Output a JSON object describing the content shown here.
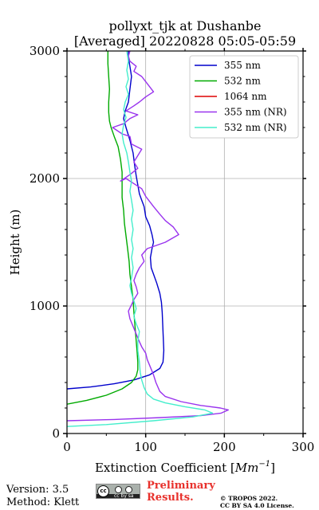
{
  "title_line1": "pollyxt_tjk at Dushanbe",
  "title_line2": "[Averaged] 20220828 05:05-05:59",
  "footer": {
    "version": "Version: 3.5",
    "method": "Method: Klett",
    "preliminary": "Preliminary Results.",
    "copyright_line1": "© TROPOS 2022.",
    "copyright_line2": "CC BY SA 4.0 License.",
    "license_badge": "cc by sa"
  },
  "chart_data": {
    "type": "line",
    "title": "pollyxt_tjk at Dushanbe [Averaged] 20220828 05:05-05:59",
    "xlabel": "Extinction Coefficient [Mm^-1]",
    "xlabel_main": "Extinction Coefficient [",
    "xlabel_unit": "Mm",
    "xlabel_exp": "−1",
    "xlabel_close": "]",
    "ylabel": "Height (m)",
    "xlim": [
      0,
      300
    ],
    "ylim": [
      0,
      3000
    ],
    "xticks": [
      0,
      100,
      200,
      300
    ],
    "yticks": [
      0,
      1000,
      2000,
      3000
    ],
    "grid": true,
    "legend_position": "top-right",
    "series": [
      {
        "name": "355 nm",
        "color": "#0000cc",
        "points": [
          [
            0,
            350
          ],
          [
            30,
            365
          ],
          [
            60,
            390
          ],
          [
            85,
            420
          ],
          [
            105,
            460
          ],
          [
            118,
            510
          ],
          [
            122,
            560
          ],
          [
            123,
            650
          ],
          [
            122,
            800
          ],
          [
            121,
            950
          ],
          [
            120,
            1030
          ],
          [
            118,
            1100
          ],
          [
            114,
            1180
          ],
          [
            110,
            1250
          ],
          [
            107,
            1300
          ],
          [
            106,
            1380
          ],
          [
            108,
            1450
          ],
          [
            110,
            1500
          ],
          [
            108,
            1560
          ],
          [
            105,
            1630
          ],
          [
            100,
            1700
          ],
          [
            98,
            1780
          ],
          [
            95,
            1830
          ],
          [
            92,
            1880
          ],
          [
            90,
            1950
          ],
          [
            88,
            2020
          ],
          [
            86,
            2100
          ],
          [
            84,
            2200
          ],
          [
            80,
            2300
          ],
          [
            75,
            2400
          ],
          [
            72,
            2470
          ],
          [
            74,
            2530
          ],
          [
            78,
            2600
          ],
          [
            80,
            2700
          ],
          [
            82,
            2800
          ],
          [
            80,
            2880
          ],
          [
            78,
            2950
          ],
          [
            78,
            3000
          ]
        ]
      },
      {
        "name": "532 nm",
        "color": "#00aa00",
        "points": [
          [
            0,
            230
          ],
          [
            25,
            260
          ],
          [
            50,
            300
          ],
          [
            70,
            350
          ],
          [
            82,
            400
          ],
          [
            88,
            450
          ],
          [
            90,
            500
          ],
          [
            90,
            560
          ],
          [
            89,
            650
          ],
          [
            87,
            800
          ],
          [
            85,
            950
          ],
          [
            84,
            1050
          ],
          [
            82,
            1150
          ],
          [
            80,
            1250
          ],
          [
            79,
            1350
          ],
          [
            77,
            1450
          ],
          [
            75,
            1550
          ],
          [
            73,
            1650
          ],
          [
            72,
            1750
          ],
          [
            70,
            1850
          ],
          [
            70,
            1950
          ],
          [
            70,
            2050
          ],
          [
            68,
            2150
          ],
          [
            65,
            2250
          ],
          [
            60,
            2330
          ],
          [
            56,
            2400
          ],
          [
            54,
            2450
          ],
          [
            53,
            2520
          ],
          [
            53,
            2600
          ],
          [
            54,
            2700
          ],
          [
            53,
            2800
          ],
          [
            52,
            2900
          ],
          [
            52,
            3000
          ]
        ]
      },
      {
        "name": "1064 nm",
        "color": "#dd0000",
        "points": []
      },
      {
        "name": "355 nm (NR)",
        "color": "#9933ee",
        "points": [
          [
            0,
            100
          ],
          [
            60,
            110
          ],
          [
            120,
            125
          ],
          [
            170,
            140
          ],
          [
            196,
            160
          ],
          [
            205,
            185
          ],
          [
            195,
            200
          ],
          [
            170,
            220
          ],
          [
            145,
            250
          ],
          [
            125,
            290
          ],
          [
            118,
            330
          ],
          [
            113,
            400
          ],
          [
            110,
            460
          ],
          [
            106,
            520
          ],
          [
            102,
            580
          ],
          [
            100,
            630
          ],
          [
            95,
            680
          ],
          [
            92,
            720
          ],
          [
            88,
            780
          ],
          [
            84,
            840
          ],
          [
            80,
            900
          ],
          [
            78,
            960
          ],
          [
            82,
            1010
          ],
          [
            85,
            1050
          ],
          [
            90,
            1100
          ],
          [
            88,
            1150
          ],
          [
            85,
            1200
          ],
          [
            88,
            1250
          ],
          [
            92,
            1300
          ],
          [
            98,
            1350
          ],
          [
            95,
            1400
          ],
          [
            102,
            1450
          ],
          [
            125,
            1500
          ],
          [
            142,
            1560
          ],
          [
            135,
            1620
          ],
          [
            125,
            1670
          ],
          [
            118,
            1720
          ],
          [
            110,
            1780
          ],
          [
            105,
            1820
          ],
          [
            100,
            1860
          ],
          [
            95,
            1920
          ],
          [
            85,
            1960
          ],
          [
            75,
            2000
          ],
          [
            68,
            1980
          ],
          [
            80,
            2030
          ],
          [
            90,
            2080
          ],
          [
            85,
            2130
          ],
          [
            90,
            2180
          ],
          [
            95,
            2230
          ],
          [
            82,
            2270
          ],
          [
            80,
            2330
          ],
          [
            70,
            2350
          ],
          [
            58,
            2400
          ],
          [
            72,
            2430
          ],
          [
            80,
            2470
          ],
          [
            90,
            2500
          ],
          [
            75,
            2530
          ],
          [
            85,
            2570
          ],
          [
            92,
            2600
          ],
          [
            100,
            2640
          ],
          [
            110,
            2680
          ],
          [
            105,
            2720
          ],
          [
            100,
            2760
          ],
          [
            95,
            2800
          ],
          [
            85,
            2840
          ],
          [
            88,
            2880
          ],
          [
            80,
            2920
          ],
          [
            78,
            2960
          ],
          [
            80,
            3000
          ]
        ]
      },
      {
        "name": "532 nm (NR)",
        "color": "#44eecc",
        "points": [
          [
            0,
            55
          ],
          [
            50,
            70
          ],
          [
            110,
            100
          ],
          [
            160,
            130
          ],
          [
            185,
            160
          ],
          [
            175,
            185
          ],
          [
            150,
            210
          ],
          [
            125,
            240
          ],
          [
            110,
            270
          ],
          [
            102,
            310
          ],
          [
            98,
            360
          ],
          [
            95,
            420
          ],
          [
            93,
            480
          ],
          [
            92,
            560
          ],
          [
            90,
            650
          ],
          [
            90,
            720
          ],
          [
            92,
            800
          ],
          [
            88,
            860
          ],
          [
            85,
            920
          ],
          [
            88,
            980
          ],
          [
            85,
            1040
          ],
          [
            82,
            1100
          ],
          [
            80,
            1160
          ],
          [
            82,
            1220
          ],
          [
            84,
            1300
          ],
          [
            82,
            1380
          ],
          [
            84,
            1450
          ],
          [
            82,
            1520
          ],
          [
            84,
            1600
          ],
          [
            82,
            1680
          ],
          [
            84,
            1750
          ],
          [
            82,
            1830
          ],
          [
            80,
            1900
          ],
          [
            82,
            1980
          ],
          [
            80,
            2050
          ],
          [
            78,
            2130
          ],
          [
            76,
            2200
          ],
          [
            72,
            2280
          ],
          [
            70,
            2350
          ],
          [
            72,
            2420
          ],
          [
            75,
            2480
          ],
          [
            72,
            2540
          ],
          [
            74,
            2600
          ],
          [
            78,
            2660
          ],
          [
            75,
            2720
          ],
          [
            78,
            2780
          ],
          [
            76,
            2850
          ],
          [
            78,
            2920
          ],
          [
            76,
            3000
          ]
        ]
      }
    ]
  }
}
